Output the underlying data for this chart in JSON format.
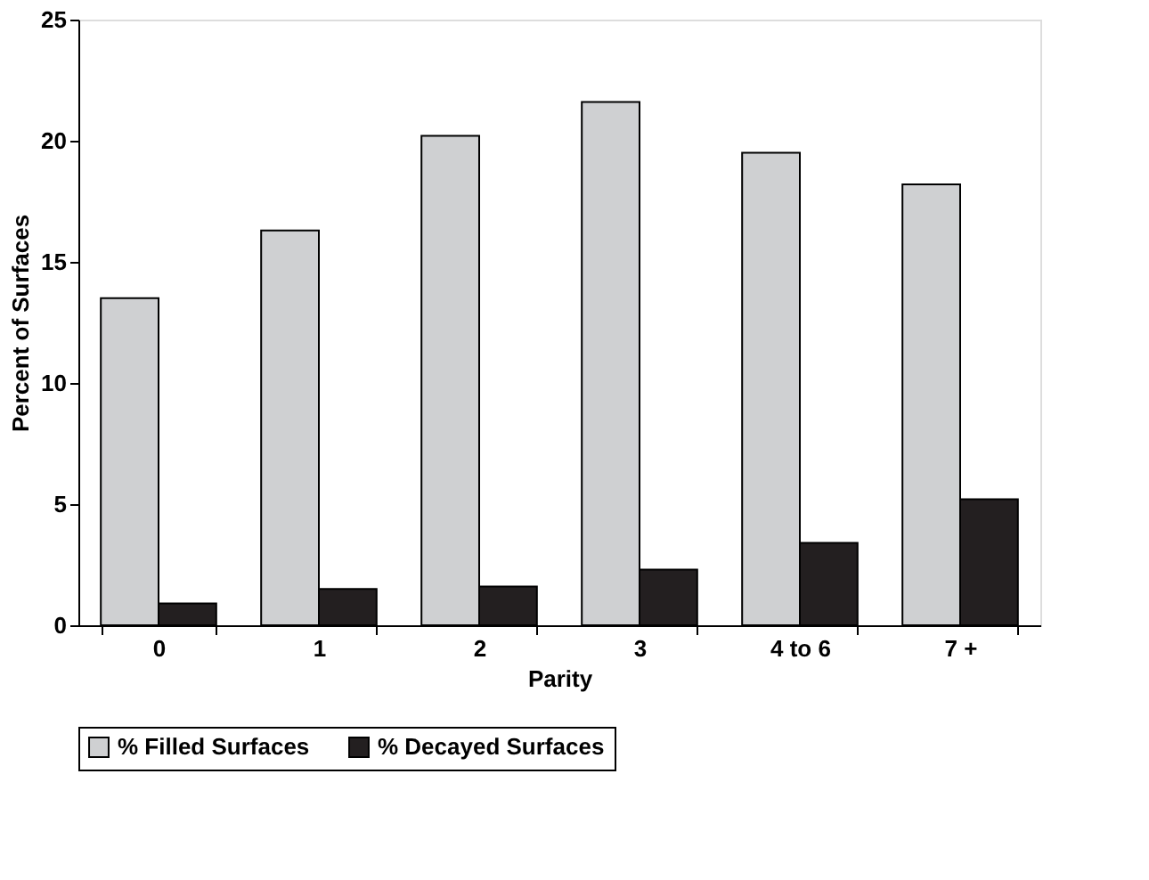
{
  "chart_data": {
    "type": "bar",
    "xlabel": "Parity",
    "ylabel": "Percent of Surfaces",
    "categories": [
      "0",
      "1",
      "2",
      "3",
      "4 to 6",
      "7 +"
    ],
    "series": [
      {
        "name": "% Filled Surfaces",
        "color": "#cfd0d2",
        "values": [
          13.5,
          16.3,
          20.2,
          21.6,
          19.5,
          18.2
        ]
      },
      {
        "name": "% Decayed Surfaces",
        "color": "#231f20",
        "values": [
          0.9,
          1.5,
          1.6,
          2.3,
          3.4,
          5.2
        ]
      }
    ],
    "ylim": [
      0,
      25
    ],
    "yticks": [
      0,
      5,
      10,
      15,
      20,
      25
    ],
    "grid": false,
    "legend": "bottom"
  }
}
